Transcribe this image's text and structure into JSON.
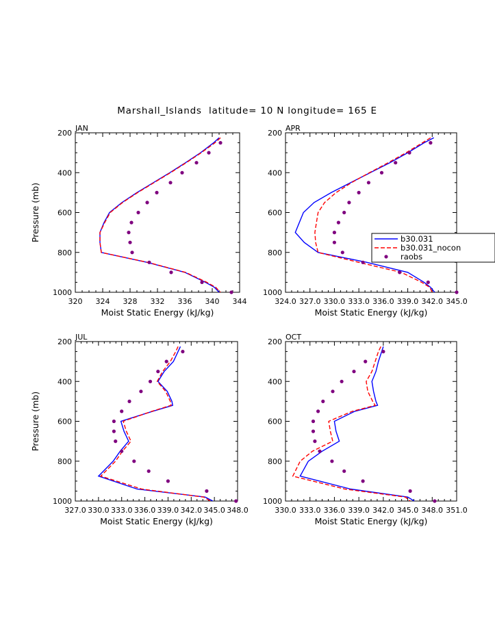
{
  "page_title": "Marshall_Islands  latitude= 10 N longitude= 165 E",
  "colors": {
    "model": "#0000ff",
    "nocon": "#ff0000",
    "raobs": "#7f007f",
    "axis": "#000000"
  },
  "legend": {
    "entries": [
      {
        "label": "b30.031",
        "style": "solid"
      },
      {
        "label": "b30.031_nocon",
        "style": "dashed"
      },
      {
        "label": "raobs",
        "style": "dot"
      }
    ]
  },
  "chart_data": [
    {
      "type": "line",
      "panel": "JAN",
      "title": "JAN",
      "xlabel": "Moist Static Energy (kJ/kg)",
      "ylabel": "Pressure (mb)",
      "xlim": [
        320,
        344
      ],
      "ylim": [
        1000,
        200
      ],
      "xticks": [
        "320",
        "324",
        "328",
        "332",
        "336",
        "340",
        "344"
      ],
      "yticks": [
        "200",
        "400",
        "600",
        "800",
        "1000"
      ],
      "pressure": [
        225,
        250,
        300,
        350,
        400,
        450,
        500,
        550,
        600,
        650,
        700,
        750,
        800,
        850,
        900,
        950,
        975,
        1000
      ],
      "series": [
        {
          "name": "b30.031",
          "values": [
            341.0,
            340.2,
            338.3,
            336.1,
            333.8,
            331.4,
            329.0,
            326.8,
            325.0,
            324.2,
            323.6,
            323.6,
            323.8,
            330.5,
            336.0,
            339.0,
            340.3,
            341.0
          ]
        },
        {
          "name": "b30.031_nocon",
          "values": [
            341.2,
            340.4,
            338.4,
            336.2,
            333.9,
            331.5,
            329.1,
            326.9,
            325.1,
            324.3,
            323.6,
            323.6,
            323.8,
            330.6,
            336.1,
            339.2,
            340.5,
            341.2
          ]
        }
      ],
      "raobs": {
        "pressure": [
          250,
          300,
          350,
          400,
          450,
          500,
          550,
          600,
          650,
          700,
          750,
          800,
          850,
          900,
          950,
          1000
        ],
        "values": [
          341.2,
          339.5,
          337.7,
          335.6,
          333.9,
          331.9,
          330.5,
          329.2,
          328.2,
          327.8,
          328.0,
          328.3,
          330.8,
          334.0,
          338.5,
          342.8
        ]
      }
    },
    {
      "type": "line",
      "panel": "APR",
      "title": "APR",
      "xlabel": "Moist Static Energy (kJ/kg)",
      "ylabel": "Pressure (mb)",
      "xlim": [
        324.0,
        345.0
      ],
      "ylim": [
        1000,
        200
      ],
      "xticks": [
        "324.0",
        "327.0",
        "330.0",
        "333.0",
        "336.0",
        "339.0",
        "342.0",
        "345.0"
      ],
      "yticks": [
        "200",
        "400",
        "600",
        "800",
        "1000"
      ],
      "pressure": [
        225,
        250,
        300,
        350,
        400,
        450,
        500,
        550,
        600,
        650,
        700,
        750,
        800,
        850,
        900,
        950,
        975,
        1000
      ],
      "series": [
        {
          "name": "b30.031",
          "values": [
            342.2,
            341.0,
            339.0,
            336.8,
            334.4,
            332.0,
            329.6,
            327.5,
            326.2,
            325.7,
            325.2,
            326.3,
            328.0,
            334.0,
            339.0,
            341.0,
            341.8,
            342.3
          ]
        },
        {
          "name": "b30.031_nocon",
          "values": [
            341.8,
            340.8,
            338.8,
            336.6,
            334.3,
            332.1,
            330.2,
            328.8,
            328.0,
            327.8,
            327.6,
            327.7,
            328.0,
            333.0,
            338.2,
            340.7,
            341.7,
            342.0
          ]
        }
      ],
      "raobs": {
        "pressure": [
          250,
          300,
          350,
          400,
          450,
          500,
          550,
          600,
          650,
          700,
          750,
          800,
          850,
          900,
          950,
          1000
        ],
        "values": [
          341.8,
          339.2,
          337.5,
          335.8,
          334.2,
          333.0,
          331.8,
          331.2,
          330.5,
          330.0,
          330.0,
          331.0,
          333.5,
          338.0,
          341.5,
          345.0
        ]
      }
    },
    {
      "type": "line",
      "panel": "JUL",
      "title": "JUL",
      "xlabel": "Moist Static Energy (kJ/kg)",
      "ylabel": "Pressure (mb)",
      "xlim": [
        327.0,
        348.0
      ],
      "ylim": [
        1000,
        200
      ],
      "xticks": [
        "327.0",
        "330.0",
        "333.0",
        "336.0",
        "339.0",
        "342.0",
        "345.0",
        "348.0"
      ],
      "yticks": [
        "200",
        "400",
        "600",
        "800",
        "1000"
      ],
      "pressure": [
        225,
        250,
        300,
        350,
        400,
        450,
        500,
        520,
        550,
        600,
        650,
        700,
        750,
        800,
        875,
        940,
        980,
        1000
      ],
      "series": [
        {
          "name": "b30.031",
          "values": [
            340.6,
            340.3,
            339.7,
            338.5,
            337.7,
            338.9,
            339.5,
            339.6,
            337.0,
            332.9,
            333.3,
            333.9,
            332.8,
            331.9,
            330.0,
            335.0,
            343.8,
            344.8
          ]
        },
        {
          "name": "b30.031_nocon",
          "values": [
            340.3,
            340.0,
            339.3,
            338.3,
            337.6,
            338.7,
            339.3,
            339.4,
            336.9,
            333.2,
            333.6,
            334.2,
            333.1,
            332.2,
            330.3,
            335.6,
            343.6,
            344.5
          ]
        }
      ],
      "raobs": {
        "pressure": [
          250,
          300,
          350,
          400,
          450,
          500,
          550,
          600,
          650,
          700,
          750,
          800,
          850,
          900,
          950,
          1000
        ],
        "values": [
          340.9,
          338.8,
          337.7,
          336.7,
          335.5,
          334.0,
          333.0,
          332.0,
          332.0,
          332.2,
          333.0,
          334.6,
          336.5,
          339.0,
          344.0,
          347.8
        ]
      }
    },
    {
      "type": "line",
      "panel": "OCT",
      "title": "OCT",
      "xlabel": "Moist Static Energy (kJ/kg)",
      "ylabel": "Pressure (mb)",
      "xlim": [
        330.0,
        351.0
      ],
      "ylim": [
        1000,
        200
      ],
      "xticks": [
        "330.0",
        "333.0",
        "336.0",
        "339.0",
        "342.0",
        "345.0",
        "348.0",
        "351.0"
      ],
      "yticks": [
        "200",
        "400",
        "600",
        "800",
        "1000"
      ],
      "pressure": [
        225,
        250,
        300,
        350,
        400,
        450,
        500,
        520,
        550,
        600,
        650,
        700,
        750,
        800,
        875,
        940,
        980,
        1000
      ],
      "series": [
        {
          "name": "b30.031",
          "values": [
            342.0,
            341.8,
            341.4,
            341.1,
            340.6,
            340.8,
            341.1,
            341.3,
            338.5,
            336.0,
            336.2,
            336.6,
            334.5,
            332.8,
            331.8,
            338.0,
            345.0,
            345.8
          ]
        },
        {
          "name": "b30.031_nocon",
          "values": [
            341.7,
            341.4,
            341.0,
            340.6,
            339.9,
            340.1,
            340.7,
            341.0,
            338.2,
            335.3,
            335.5,
            335.8,
            333.3,
            331.8,
            330.9,
            337.3,
            344.7,
            345.3
          ]
        }
      ],
      "raobs": {
        "pressure": [
          250,
          300,
          350,
          400,
          450,
          500,
          550,
          600,
          650,
          700,
          750,
          800,
          850,
          900,
          950,
          1000
        ],
        "values": [
          342.0,
          339.8,
          338.4,
          336.9,
          335.8,
          334.6,
          334.0,
          333.4,
          333.4,
          333.6,
          334.2,
          335.7,
          337.2,
          339.5,
          345.3,
          348.3
        ]
      }
    }
  ]
}
